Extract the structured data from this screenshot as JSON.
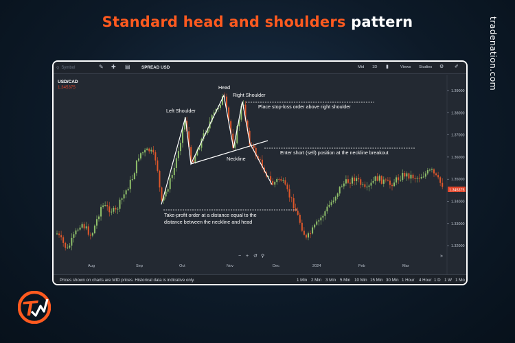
{
  "title": {
    "accent": "Standard head and shoulders",
    "plain": "pattern"
  },
  "brand": "tradenation.com",
  "toolbar": {
    "search_placeholder": "Symbol",
    "symbol": "SPREAD USD",
    "right_items": [
      "Mid",
      "1D",
      "Views",
      "Studies"
    ]
  },
  "instrument": {
    "pair": "USD/CAD",
    "price": "1.345375"
  },
  "chart_data": {
    "type": "candlestick",
    "price_axis": [
      "1.39000",
      "1.38000",
      "1.37000",
      "1.36000",
      "1.35000",
      "1.34000",
      "1.33000",
      "1.32000"
    ],
    "current_price_label": "1.345375",
    "time_axis": [
      "Aug",
      "Sep",
      "Oct",
      "Nov",
      "Dec",
      "2024",
      "Feb",
      "Mar"
    ],
    "annotations": {
      "head": "Head",
      "right_shoulder": "Right Shoulder",
      "left_shoulder": "Left Shoulder",
      "neckline": "Neckline",
      "stop_loss": "Place stop-loss order above right shoulder",
      "entry": "Enter short (sell) position at the neckline breakout",
      "take_profit_1": "Take-profit order at a distance equal to the",
      "take_profit_2": "distance between the neckline and head"
    },
    "colors": {
      "up": "#8fbf6a",
      "down": "#e0572a",
      "pattern": "#ffffff",
      "price_tag": "#e0452a"
    }
  },
  "status": {
    "note": "Prices shown on charts are MID prices. Historical data is indicative only.",
    "timeframes": [
      "1 Min",
      "2 Min",
      "3 Min",
      "5 Min",
      "10 Min",
      "15 Min",
      "30 Min",
      "1 Hour",
      "4 Hour",
      "1 D",
      "1 W",
      "1 Mo"
    ]
  }
}
